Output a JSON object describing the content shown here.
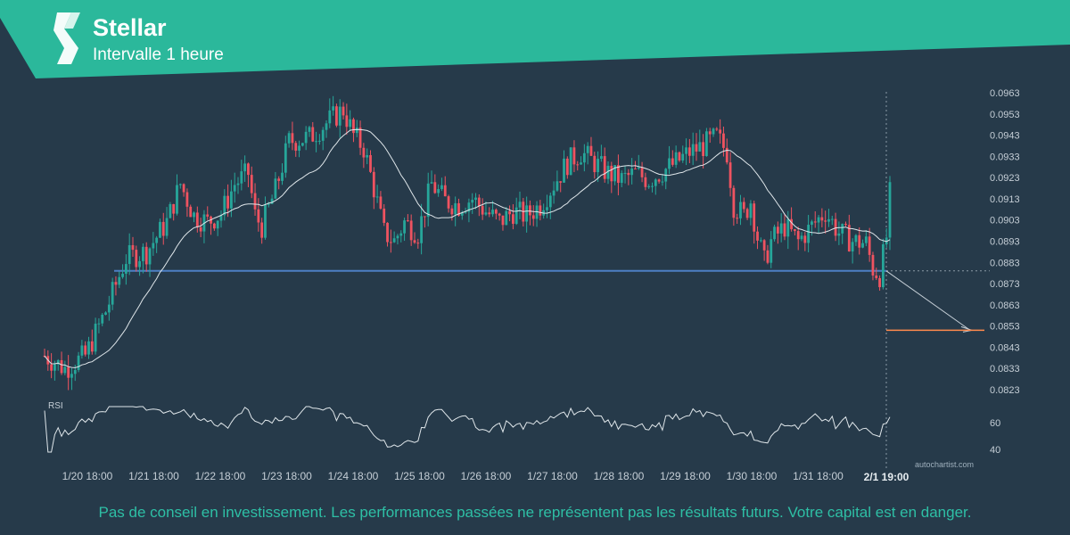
{
  "header": {
    "title": "Stellar",
    "subtitle": "Intervalle 1 heure",
    "brand_color": "#2bb89b",
    "logo_icon": "stellar-logo-icon"
  },
  "disclaimer": "Pas de conseil en investissement. Les performances passées ne représentent pas les résultats futurs. Votre capital est en danger.",
  "watermark": "autochartist.com",
  "chart_data": {
    "type": "candlestick",
    "price_axis": {
      "ticks": [
        "0.0963",
        "0.0953",
        "0.0943",
        "0.0933",
        "0.0923",
        "0.0913",
        "0.0903",
        "0.0893",
        "0.0883",
        "0.0873",
        "0.0863",
        "0.0853",
        "0.0843",
        "0.0833",
        "0.0823"
      ],
      "range": [
        0.0818,
        0.0966
      ]
    },
    "rsi_axis": {
      "label": "RSI",
      "ticks": [
        "60",
        "40"
      ],
      "range": [
        30,
        80
      ]
    },
    "time_axis": {
      "ticks": [
        "1/20 18:00",
        "1/21 18:00",
        "1/22 18:00",
        "1/23 18:00",
        "1/24 18:00",
        "1/25 18:00",
        "1/26 18:00",
        "1/27 18:00",
        "1/28 18:00",
        "1/29 18:00",
        "1/30 18:00",
        "1/31 18:00"
      ],
      "current_time_label": "2/1 19:00"
    },
    "price_path": [
      [
        0,
        0.0839
      ],
      [
        6,
        0.0833
      ],
      [
        12,
        0.0839
      ],
      [
        18,
        0.086
      ],
      [
        24,
        0.0885
      ],
      [
        30,
        0.0888
      ],
      [
        36,
        0.0902
      ],
      [
        40,
        0.092
      ],
      [
        44,
        0.0905
      ],
      [
        48,
        0.0902
      ],
      [
        52,
        0.0906
      ],
      [
        56,
        0.092
      ],
      [
        60,
        0.0925
      ],
      [
        62,
        0.0905
      ],
      [
        64,
        0.09
      ],
      [
        68,
        0.0917
      ],
      [
        72,
        0.094
      ],
      [
        78,
        0.0942
      ],
      [
        84,
        0.095
      ],
      [
        88,
        0.0955
      ],
      [
        91,
        0.0943
      ],
      [
        94,
        0.0937
      ],
      [
        97,
        0.0918
      ],
      [
        100,
        0.0897
      ],
      [
        103,
        0.0893
      ],
      [
        106,
        0.0902
      ],
      [
        110,
        0.0897
      ],
      [
        114,
        0.092
      ],
      [
        118,
        0.0912
      ],
      [
        122,
        0.091
      ],
      [
        126,
        0.0913
      ],
      [
        130,
        0.0907
      ],
      [
        134,
        0.0902
      ],
      [
        138,
        0.0907
      ],
      [
        142,
        0.0905
      ],
      [
        146,
        0.091
      ],
      [
        150,
        0.092
      ],
      [
        154,
        0.093
      ],
      [
        158,
        0.0935
      ],
      [
        162,
        0.093
      ],
      [
        166,
        0.0925
      ],
      [
        170,
        0.0922
      ],
      [
        174,
        0.0925
      ],
      [
        178,
        0.0922
      ],
      [
        182,
        0.0926
      ],
      [
        186,
        0.093
      ],
      [
        190,
        0.0935
      ],
      [
        194,
        0.0938
      ],
      [
        198,
        0.0942
      ],
      [
        201,
        0.0935
      ],
      [
        203,
        0.091
      ],
      [
        206,
        0.0905
      ],
      [
        208,
        0.0912
      ],
      [
        210,
        0.0895
      ],
      [
        212,
        0.0883
      ],
      [
        214,
        0.0893
      ],
      [
        218,
        0.09
      ],
      [
        222,
        0.0893
      ],
      [
        226,
        0.09
      ],
      [
        230,
        0.0907
      ],
      [
        234,
        0.0897
      ],
      [
        238,
        0.0893
      ],
      [
        242,
        0.0892
      ],
      [
        244,
        0.088
      ],
      [
        246,
        0.0877
      ],
      [
        248,
        0.0895
      ],
      [
        249,
        0.0915
      ]
    ],
    "support_level": 0.0879,
    "projection_target": 0.0851,
    "moving_average": "light line",
    "colors": {
      "up": "#26a69a",
      "down": "#ef5360",
      "support": "#4d7fc4",
      "target": "#ff8a4d"
    }
  }
}
